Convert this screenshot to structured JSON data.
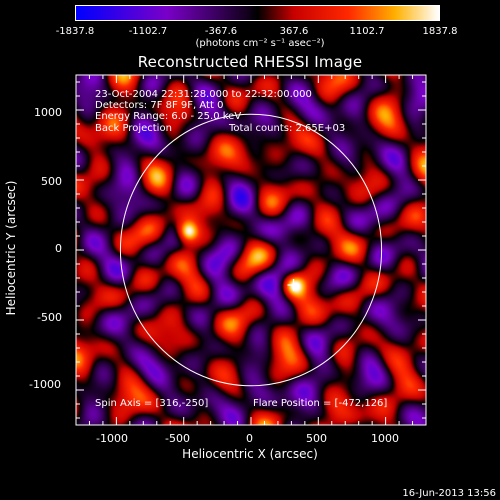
{
  "colorbar": {
    "ticks": [
      "-1837.8",
      "-1102.7",
      "-367.6",
      "367.6",
      "1102.7",
      "1837.8"
    ],
    "units": "(photons cm⁻² s⁻¹ asec⁻²)",
    "range": [
      -1837.8,
      1837.8
    ],
    "colors": [
      "#0000ff",
      "#7a00c8",
      "#000000",
      "#ff0000",
      "#ffb000",
      "#ffffff"
    ]
  },
  "title": "Reconstructed RHESSI Image",
  "annotations": {
    "time": "23-Oct-2004 22:31:28.000 to 22:32:00.000",
    "detectors": "Detectors: 7F 8F 9F, Att 0",
    "energy": "Energy Range: 6.0 - 25.0 keV",
    "method": "Back Projection",
    "counts": "Total counts: 2.65E+03",
    "spin_axis": "Spin Axis = [316,-250]",
    "flare_position": "Flare Position = [-472,126]"
  },
  "footer": "16-Jun-2013 13:56",
  "chart_data": {
    "type": "heatmap",
    "title": "Reconstructed RHESSI Image",
    "xlabel": "Heliocentric X (arcsec)",
    "ylabel": "Heliocentric Y (arcsec)",
    "xlim": [
      -1300,
      1300
    ],
    "ylim": [
      -1250,
      1250
    ],
    "x_ticks": [
      "-1000",
      "-500",
      "0",
      "500",
      "1000"
    ],
    "y_ticks": [
      "1000",
      "500",
      "0",
      "-500",
      "-1000"
    ],
    "x_tick_values": [
      -1000,
      -500,
      0,
      500,
      1000
    ],
    "y_tick_values": [
      1000,
      500,
      0,
      -500,
      -1000
    ],
    "solar_limb_radius_arcsec": 970,
    "bright_sources": [
      {
        "x": -472,
        "y": 126,
        "intensity": 1837.8
      },
      {
        "x": 316,
        "y": -250,
        "intensity": 1102.7
      }
    ],
    "spin_axis_marker": {
      "x": 316,
      "y": -250
    },
    "grid": false
  }
}
